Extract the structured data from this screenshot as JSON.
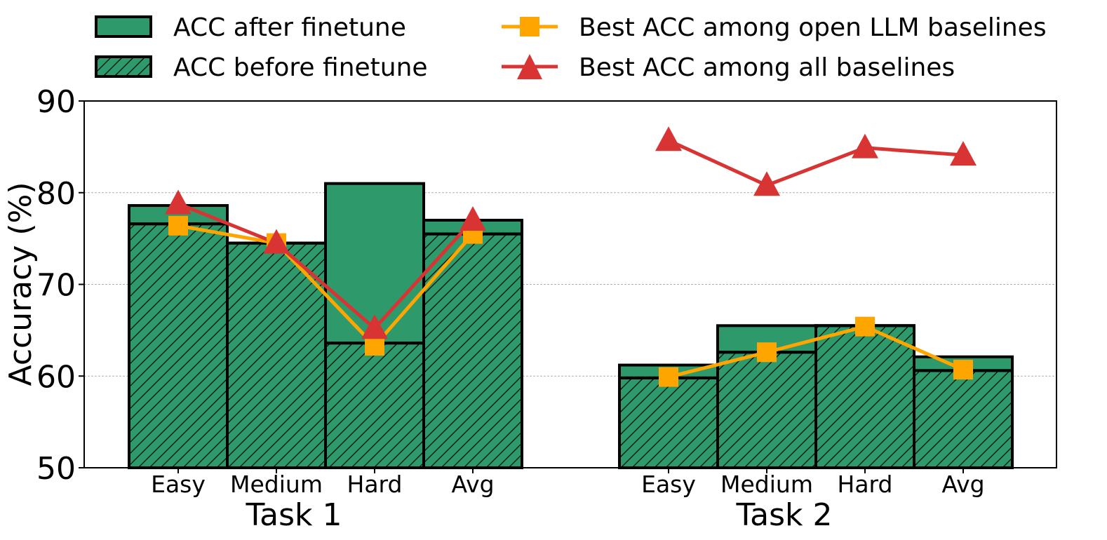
{
  "chart_data": {
    "type": "bar",
    "ylabel": "Accuracy (%)",
    "ylim": [
      50,
      90
    ],
    "yticks": [
      50,
      60,
      70,
      80,
      90
    ],
    "grid": true,
    "legend_position": "top",
    "colors": {
      "bar_fill": "#2e9a6b",
      "bar_edge": "#000000",
      "open_llm_line": "#ffa500",
      "all_baselines_line": "#d83434",
      "grid": "#b0b0b0"
    },
    "legend": {
      "after": "ACC after finetune",
      "before": "ACC before finetune",
      "open_llm": "Best ACC among open LLM baselines",
      "all": "Best ACC among all baselines"
    },
    "groups": [
      {
        "name": "Task 1",
        "categories": [
          "Easy",
          "Medium",
          "Hard",
          "Avg"
        ],
        "acc_after": [
          78.6,
          74.5,
          81.0,
          77.0
        ],
        "acc_before": [
          76.6,
          74.5,
          63.6,
          75.5
        ],
        "best_open_llm": [
          76.4,
          74.5,
          63.3,
          75.5
        ],
        "best_all": [
          78.8,
          74.5,
          65.2,
          77.0
        ]
      },
      {
        "name": "Task 2",
        "categories": [
          "Easy",
          "Medium",
          "Hard",
          "Avg"
        ],
        "acc_after": [
          61.2,
          65.5,
          65.5,
          62.1
        ],
        "acc_before": [
          59.8,
          62.6,
          65.5,
          60.6
        ],
        "best_open_llm": [
          59.9,
          62.6,
          65.4,
          60.7
        ],
        "best_all": [
          85.7,
          80.8,
          84.9,
          84.1
        ]
      }
    ]
  }
}
